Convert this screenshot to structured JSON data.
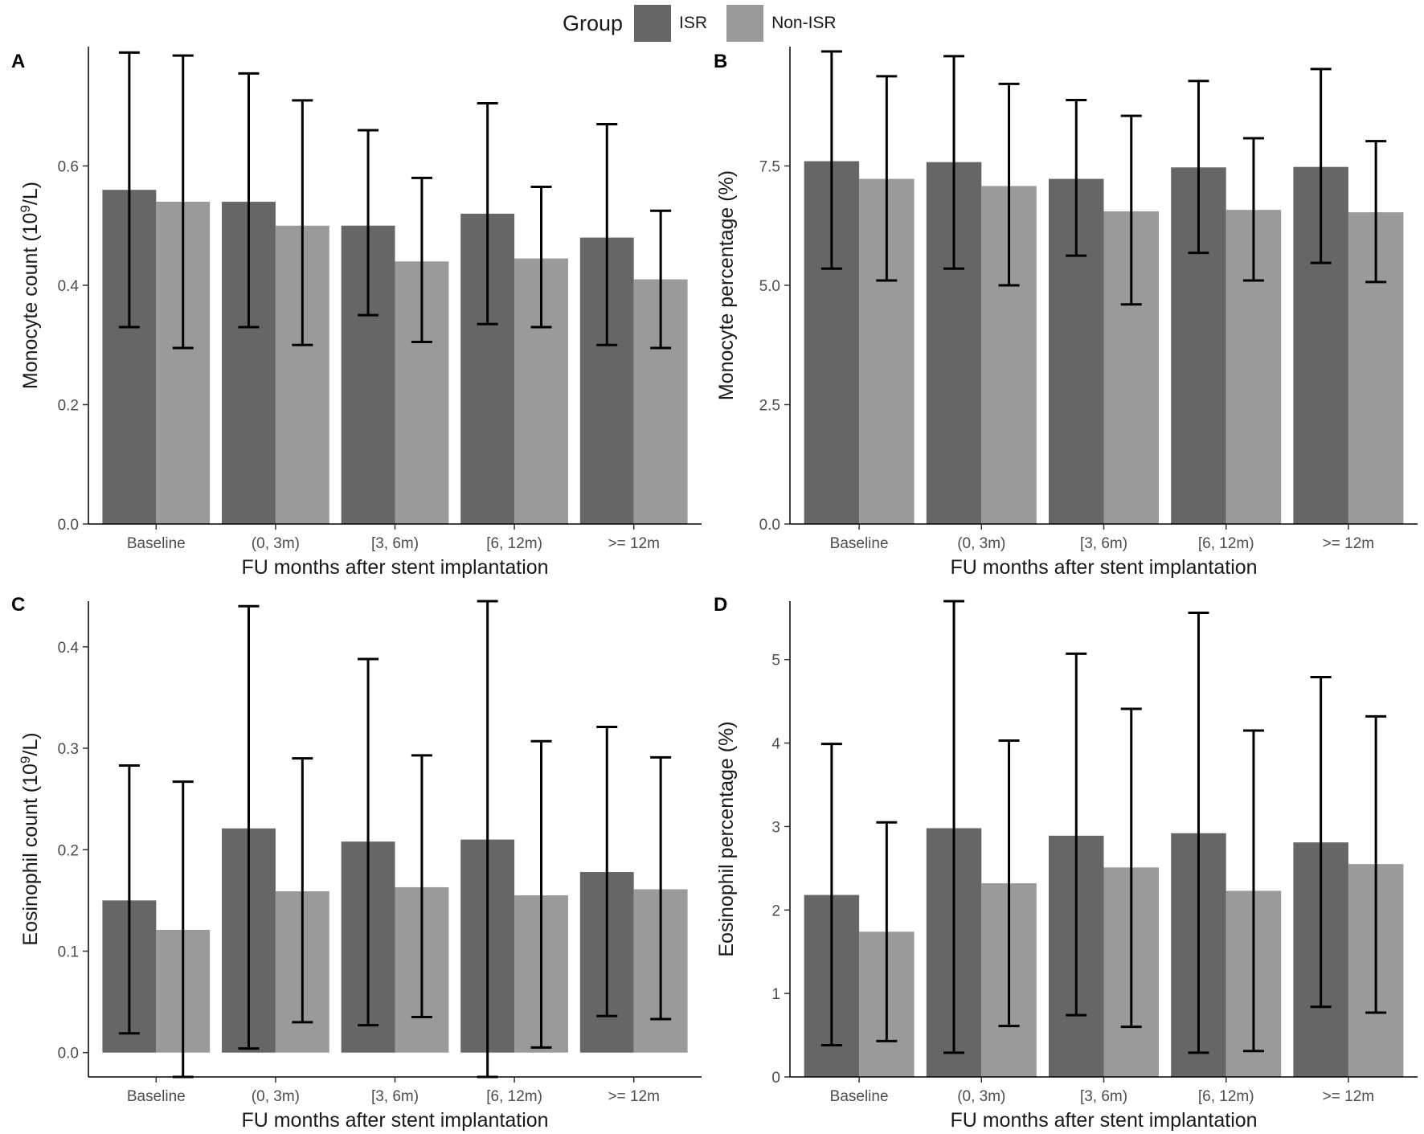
{
  "legend": {
    "title": "Group",
    "items": [
      {
        "label": "ISR",
        "color": "#666666"
      },
      {
        "label": "Non-ISR",
        "color": "#9a9a9a"
      }
    ]
  },
  "chart_data": [
    {
      "panel": "A",
      "type": "bar",
      "categories": [
        "Baseline",
        "(0, 3m)",
        "[3, 6m)",
        "[6, 12m)",
        ">= 12m"
      ],
      "xlabel": "FU months after stent implantation",
      "ylabel_parts": [
        "Monocyte count (10",
        "9",
        "/L)"
      ],
      "ylim": [
        0,
        0.8
      ],
      "yticks": [
        0.0,
        0.2,
        0.4,
        0.6
      ],
      "ytick_labels": [
        "0.0",
        "0.2",
        "0.4",
        "0.6"
      ],
      "series": [
        {
          "name": "ISR",
          "values": [
            0.56,
            0.54,
            0.5,
            0.52,
            0.48
          ],
          "err_low": [
            0.33,
            0.33,
            0.35,
            0.335,
            0.3
          ],
          "err_high": [
            0.79,
            0.755,
            0.66,
            0.705,
            0.67
          ]
        },
        {
          "name": "Non-ISR",
          "values": [
            0.54,
            0.5,
            0.44,
            0.445,
            0.41
          ],
          "err_low": [
            0.295,
            0.3,
            0.305,
            0.33,
            0.295
          ],
          "err_high": [
            0.785,
            0.71,
            0.58,
            0.565,
            0.525
          ]
        }
      ]
    },
    {
      "panel": "B",
      "type": "bar",
      "categories": [
        "Baseline",
        "(0, 3m)",
        "[3, 6m)",
        "[6, 12m)",
        ">= 12m"
      ],
      "xlabel": "FU months after stent implantation",
      "ylabel_parts": [
        "Monocyte percentage (%)"
      ],
      "ylim": [
        0,
        10
      ],
      "yticks": [
        0,
        2.5,
        5,
        7.5
      ],
      "ytick_labels": [
        "0.0",
        "2.5",
        "5.0",
        "7.5"
      ],
      "series": [
        {
          "name": "ISR",
          "values": [
            7.6,
            7.58,
            7.23,
            7.47,
            7.48
          ],
          "err_low": [
            5.35,
            5.35,
            5.62,
            5.68,
            5.47
          ],
          "err_high": [
            9.9,
            9.8,
            8.88,
            9.28,
            9.53
          ]
        },
        {
          "name": "Non-ISR",
          "values": [
            7.23,
            7.08,
            6.55,
            6.58,
            6.53
          ],
          "err_low": [
            5.1,
            5.0,
            4.6,
            5.1,
            5.07
          ],
          "err_high": [
            9.38,
            9.22,
            8.55,
            8.08,
            8.02
          ]
        }
      ]
    },
    {
      "panel": "C",
      "type": "bar",
      "categories": [
        "Baseline",
        "(0, 3m)",
        "[3, 6m)",
        "[6, 12m)",
        ">= 12m"
      ],
      "xlabel": "FU months after stent implantation",
      "ylabel_parts": [
        "Eosinophil count (10",
        "9",
        "/L)"
      ],
      "ylim": [
        -0.024,
        0.445
      ],
      "yticks": [
        0.0,
        0.1,
        0.2,
        0.3,
        0.4
      ],
      "ytick_labels": [
        "0.0",
        "0.1",
        "0.2",
        "0.3",
        "0.4"
      ],
      "series": [
        {
          "name": "ISR",
          "values": [
            0.15,
            0.221,
            0.208,
            0.21,
            0.178
          ],
          "err_low": [
            0.019,
            0.004,
            0.027,
            -0.024,
            0.036
          ],
          "err_high": [
            0.283,
            0.44,
            0.388,
            0.445,
            0.321
          ]
        },
        {
          "name": "Non-ISR",
          "values": [
            0.121,
            0.159,
            0.163,
            0.155,
            0.161
          ],
          "err_low": [
            -0.024,
            0.03,
            0.035,
            0.005,
            0.033
          ],
          "err_high": [
            0.267,
            0.29,
            0.293,
            0.307,
            0.291
          ]
        }
      ]
    },
    {
      "panel": "D",
      "type": "bar",
      "categories": [
        "Baseline",
        "(0, 3m)",
        "[3, 6m)",
        "[6, 12m)",
        ">= 12m"
      ],
      "xlabel": "FU months after stent implantation",
      "ylabel_parts": [
        "Eosinophil percentage (%)"
      ],
      "ylim": [
        0,
        5.7
      ],
      "yticks": [
        0,
        1,
        2,
        3,
        4,
        5
      ],
      "ytick_labels": [
        "0",
        "1",
        "2",
        "3",
        "4",
        "5"
      ],
      "series": [
        {
          "name": "ISR",
          "values": [
            2.18,
            2.98,
            2.89,
            2.92,
            2.81
          ],
          "err_low": [
            0.38,
            0.29,
            0.74,
            0.29,
            0.84
          ],
          "err_high": [
            3.99,
            5.7,
            5.07,
            5.56,
            4.79
          ]
        },
        {
          "name": "Non-ISR",
          "values": [
            1.74,
            2.32,
            2.51,
            2.23,
            2.55
          ],
          "err_low": [
            0.43,
            0.61,
            0.6,
            0.31,
            0.77
          ],
          "err_high": [
            3.05,
            4.03,
            4.41,
            4.15,
            4.32
          ]
        }
      ]
    }
  ]
}
